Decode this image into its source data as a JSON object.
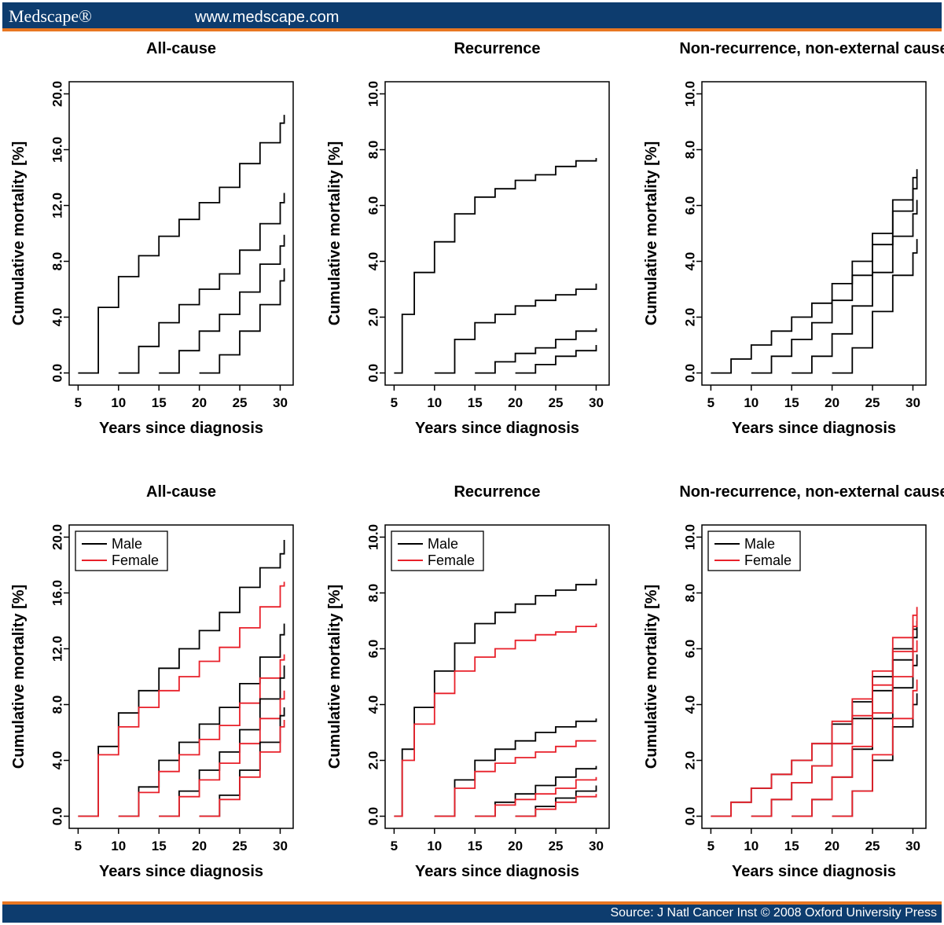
{
  "header": {
    "brand": "Medscape®",
    "url": "www.medscape.com"
  },
  "footer": {
    "source": "Source: J Natl Cancer Inst © 2008 Oxford University Press"
  },
  "colors": {
    "header_bg": "#0d3c6e",
    "accent": "#e87722",
    "male": "#000000",
    "female": "#e8202a"
  },
  "chart_data": [
    {
      "type": "line",
      "title": "All-cause",
      "xlabel": "Years since diagnosis",
      "ylabel": "Cumulative mortality [%]",
      "xlim": [
        5,
        30.5
      ],
      "ylim": [
        0,
        20
      ],
      "xticks": [
        "5",
        "10",
        "15",
        "20",
        "25",
        "30"
      ],
      "yticks": [
        "0.0",
        "4.0",
        "8.0",
        "12.0",
        "16.0",
        "20.0"
      ],
      "grid": false,
      "series": [
        {
          "x": [
            5,
            7.5,
            10,
            12.5,
            15,
            17.5,
            20,
            22.5,
            25,
            27.5,
            30,
            30.5
          ],
          "y": [
            0,
            4.7,
            6.9,
            8.4,
            9.8,
            11.0,
            12.2,
            13.3,
            15.0,
            16.5,
            17.9,
            18.5
          ]
        },
        {
          "x": [
            10,
            12.5,
            15,
            17.5,
            20,
            22.5,
            25,
            27.5,
            30,
            30.5
          ],
          "y": [
            0,
            1.9,
            3.6,
            4.9,
            6.0,
            7.1,
            8.8,
            10.7,
            12.2,
            12.9
          ]
        },
        {
          "x": [
            15,
            17.5,
            20,
            22.5,
            25,
            27.5,
            30,
            30.5
          ],
          "y": [
            0,
            1.6,
            3.0,
            4.2,
            5.8,
            7.8,
            9.1,
            9.9
          ]
        },
        {
          "x": [
            20,
            22.5,
            25,
            27.5,
            30,
            30.5
          ],
          "y": [
            0,
            1.3,
            3.0,
            4.9,
            6.6,
            7.5
          ]
        }
      ]
    },
    {
      "type": "line",
      "title": "Recurrence",
      "xlabel": "Years since diagnosis",
      "ylabel": "Cumulative mortality [%]",
      "xlim": [
        5,
        30.5
      ],
      "ylim": [
        0,
        10
      ],
      "xticks": [
        "5",
        "10",
        "15",
        "20",
        "25",
        "30"
      ],
      "yticks": [
        "0.0",
        "2.0",
        "4.0",
        "6.0",
        "8.0",
        "10.0"
      ],
      "grid": false,
      "series": [
        {
          "x": [
            5,
            6,
            7.5,
            10,
            12.5,
            15,
            17.5,
            20,
            22.5,
            25,
            27.5,
            30
          ],
          "y": [
            0,
            2.1,
            3.6,
            4.7,
            5.7,
            6.3,
            6.6,
            6.9,
            7.1,
            7.4,
            7.6,
            7.7
          ]
        },
        {
          "x": [
            10,
            12.5,
            15,
            17.5,
            20,
            22.5,
            25,
            27.5,
            30
          ],
          "y": [
            0,
            1.2,
            1.8,
            2.1,
            2.4,
            2.6,
            2.8,
            3.0,
            3.2
          ]
        },
        {
          "x": [
            15,
            17.5,
            20,
            22.5,
            25,
            27.5,
            30
          ],
          "y": [
            0,
            0.4,
            0.7,
            0.9,
            1.2,
            1.5,
            1.6
          ]
        },
        {
          "x": [
            20,
            22.5,
            25,
            27.5,
            30
          ],
          "y": [
            0,
            0.3,
            0.6,
            0.8,
            1.0
          ]
        }
      ]
    },
    {
      "type": "line",
      "title": "Non-recurrence, non-external cause",
      "xlabel": "Years since diagnosis",
      "ylabel": "Cumulative mortality [%]",
      "xlim": [
        5,
        30.5
      ],
      "ylim": [
        0,
        10
      ],
      "xticks": [
        "5",
        "10",
        "15",
        "20",
        "25",
        "30"
      ],
      "yticks": [
        "0.0",
        "2.0",
        "4.0",
        "6.0",
        "8.0",
        "10.0"
      ],
      "grid": false,
      "series": [
        {
          "x": [
            5,
            7.5,
            10,
            12.5,
            15,
            17.5,
            20,
            22.5,
            25,
            27.5,
            30,
            30.5
          ],
          "y": [
            0,
            0.5,
            1.0,
            1.5,
            2.0,
            2.5,
            3.2,
            4.0,
            5.0,
            6.2,
            7.0,
            7.3
          ]
        },
        {
          "x": [
            10,
            12.5,
            15,
            17.5,
            20,
            22.5,
            25,
            27.5,
            30,
            30.5
          ],
          "y": [
            0,
            0.6,
            1.2,
            1.8,
            2.6,
            3.5,
            4.6,
            5.8,
            6.6,
            7.0
          ]
        },
        {
          "x": [
            15,
            17.5,
            20,
            22.5,
            25,
            27.5,
            30,
            30.5
          ],
          "y": [
            0,
            0.6,
            1.4,
            2.4,
            3.6,
            4.9,
            5.7,
            6.2
          ]
        },
        {
          "x": [
            20,
            22.5,
            25,
            27.5,
            30,
            30.5
          ],
          "y": [
            0,
            0.9,
            2.2,
            3.5,
            4.3,
            4.8
          ]
        }
      ]
    },
    {
      "type": "line",
      "title": "All-cause",
      "xlabel": "Years since diagnosis",
      "ylabel": "Cumulative mortality [%]",
      "xlim": [
        5,
        30.5
      ],
      "ylim": [
        0,
        20
      ],
      "xticks": [
        "5",
        "10",
        "15",
        "20",
        "25",
        "30"
      ],
      "yticks": [
        "0.0",
        "4.0",
        "8.0",
        "12.0",
        "16.0",
        "20.0"
      ],
      "grid": false,
      "legend": {
        "position": "top-left",
        "entries": [
          {
            "label": "Male",
            "color": "#000000"
          },
          {
            "label": "Female",
            "color": "#e8202a"
          }
        ]
      },
      "series": [
        {
          "name": "Male",
          "x": [
            5,
            7.5,
            10,
            12.5,
            15,
            17.5,
            20,
            22.5,
            25,
            27.5,
            30,
            30.5
          ],
          "y": [
            0,
            5.0,
            7.4,
            9.0,
            10.6,
            12.0,
            13.3,
            14.6,
            16.4,
            17.8,
            18.8,
            19.8
          ]
        },
        {
          "name": "Female",
          "x": [
            5,
            7.5,
            10,
            12.5,
            15,
            17.5,
            20,
            22.5,
            25,
            27.5,
            30,
            30.5
          ],
          "y": [
            0,
            4.4,
            6.4,
            7.8,
            9.0,
            10.0,
            11.1,
            12.1,
            13.5,
            15.0,
            16.5,
            16.8
          ]
        },
        {
          "name": "Male",
          "x": [
            10,
            12.5,
            15,
            17.5,
            20,
            22.5,
            25,
            27.5,
            30,
            30.5
          ],
          "y": [
            0,
            2.1,
            4.0,
            5.3,
            6.6,
            7.8,
            9.5,
            11.4,
            13.0,
            13.8
          ]
        },
        {
          "name": "Female",
          "x": [
            10,
            12.5,
            15,
            17.5,
            20,
            22.5,
            25,
            27.5,
            30,
            30.5
          ],
          "y": [
            0,
            1.7,
            3.2,
            4.4,
            5.5,
            6.5,
            8.1,
            9.9,
            11.2,
            11.6
          ]
        },
        {
          "name": "Male",
          "x": [
            15,
            17.5,
            20,
            22.5,
            25,
            27.5,
            30,
            30.5
          ],
          "y": [
            0,
            1.8,
            3.3,
            4.6,
            6.2,
            8.4,
            9.9,
            10.8
          ]
        },
        {
          "name": "Female",
          "x": [
            15,
            17.5,
            20,
            22.5,
            25,
            27.5,
            30,
            30.5
          ],
          "y": [
            0,
            1.4,
            2.6,
            3.8,
            5.2,
            7.0,
            8.4,
            9.0
          ]
        },
        {
          "name": "Male",
          "x": [
            20,
            22.5,
            25,
            27.5,
            30,
            30.5
          ],
          "y": [
            0,
            1.5,
            3.3,
            5.3,
            7.2,
            7.8
          ]
        },
        {
          "name": "Female",
          "x": [
            20,
            22.5,
            25,
            27.5,
            30,
            30.5
          ],
          "y": [
            0,
            1.2,
            2.8,
            4.6,
            6.4,
            6.9
          ]
        }
      ]
    },
    {
      "type": "line",
      "title": "Recurrence",
      "xlabel": "Years since diagnosis",
      "ylabel": "Cumulative mortality [%]",
      "xlim": [
        5,
        30.5
      ],
      "ylim": [
        0,
        10
      ],
      "xticks": [
        "5",
        "10",
        "15",
        "20",
        "25",
        "30"
      ],
      "yticks": [
        "0.0",
        "2.0",
        "4.0",
        "6.0",
        "8.0",
        "10.0"
      ],
      "grid": false,
      "legend": {
        "position": "top-left",
        "entries": [
          {
            "label": "Male",
            "color": "#000000"
          },
          {
            "label": "Female",
            "color": "#e8202a"
          }
        ]
      },
      "series": [
        {
          "name": "Male",
          "x": [
            5,
            6,
            7.5,
            10,
            12.5,
            15,
            17.5,
            20,
            22.5,
            25,
            27.5,
            30
          ],
          "y": [
            0,
            2.4,
            3.9,
            5.2,
            6.2,
            6.9,
            7.3,
            7.6,
            7.9,
            8.1,
            8.3,
            8.5
          ]
        },
        {
          "name": "Female",
          "x": [
            5,
            6,
            7.5,
            10,
            12.5,
            15,
            17.5,
            20,
            22.5,
            25,
            27.5,
            30
          ],
          "y": [
            0,
            2.0,
            3.3,
            4.4,
            5.2,
            5.7,
            6.0,
            6.3,
            6.5,
            6.6,
            6.8,
            6.9
          ]
        },
        {
          "name": "Male",
          "x": [
            10,
            12.5,
            15,
            17.5,
            20,
            22.5,
            25,
            27.5,
            30
          ],
          "y": [
            0,
            1.3,
            2.0,
            2.4,
            2.7,
            3.0,
            3.2,
            3.4,
            3.5
          ]
        },
        {
          "name": "Female",
          "x": [
            10,
            12.5,
            15,
            17.5,
            20,
            22.5,
            25,
            27.5,
            30
          ],
          "y": [
            0,
            1.0,
            1.6,
            1.9,
            2.1,
            2.3,
            2.5,
            2.7,
            2.7
          ]
        },
        {
          "name": "Male",
          "x": [
            15,
            17.5,
            20,
            22.5,
            25,
            27.5,
            30
          ],
          "y": [
            0,
            0.5,
            0.8,
            1.1,
            1.4,
            1.7,
            1.8
          ]
        },
        {
          "name": "Female",
          "x": [
            15,
            17.5,
            20,
            22.5,
            25,
            27.5,
            30
          ],
          "y": [
            0,
            0.4,
            0.6,
            0.8,
            1.0,
            1.3,
            1.4
          ]
        },
        {
          "name": "Male",
          "x": [
            20,
            22.5,
            25,
            27.5,
            30
          ],
          "y": [
            0,
            0.35,
            0.65,
            0.9,
            1.1
          ]
        },
        {
          "name": "Female",
          "x": [
            20,
            22.5,
            25,
            27.5,
            30
          ],
          "y": [
            0,
            0.25,
            0.5,
            0.7,
            0.8
          ]
        }
      ]
    },
    {
      "type": "line",
      "title": "Non-recurrence, non-external cause",
      "xlabel": "Years since diagnosis",
      "ylabel": "Cumulative mortality [%]",
      "xlim": [
        5,
        30.5
      ],
      "ylim": [
        0,
        10
      ],
      "xticks": [
        "5",
        "10",
        "15",
        "20",
        "25",
        "30"
      ],
      "yticks": [
        "0.0",
        "2.0",
        "4.0",
        "6.0",
        "8.0",
        "10.0"
      ],
      "grid": false,
      "legend": {
        "position": "top-left",
        "entries": [
          {
            "label": "Male",
            "color": "#000000"
          },
          {
            "label": "Female",
            "color": "#e8202a"
          }
        ]
      },
      "series": [
        {
          "name": "Male",
          "x": [
            5,
            7.5,
            10,
            12.5,
            15,
            17.5,
            20,
            22.5,
            25,
            27.5,
            30,
            30.5
          ],
          "y": [
            0,
            0.5,
            1.0,
            1.5,
            2.0,
            2.6,
            3.3,
            4.1,
            5.0,
            6.0,
            6.7,
            7.0
          ]
        },
        {
          "name": "Female",
          "x": [
            5,
            7.5,
            10,
            12.5,
            15,
            17.5,
            20,
            22.5,
            25,
            27.5,
            30,
            30.5
          ],
          "y": [
            0,
            0.5,
            1.0,
            1.5,
            2.0,
            2.6,
            3.4,
            4.2,
            5.2,
            6.4,
            7.2,
            7.5
          ]
        },
        {
          "name": "Male",
          "x": [
            10,
            12.5,
            15,
            17.5,
            20,
            22.5,
            25,
            27.5,
            30,
            30.5
          ],
          "y": [
            0,
            0.6,
            1.2,
            1.8,
            2.6,
            3.5,
            4.5,
            5.6,
            6.4,
            6.8
          ]
        },
        {
          "name": "Female",
          "x": [
            10,
            12.5,
            15,
            17.5,
            20,
            22.5,
            25,
            27.5,
            30,
            30.5
          ],
          "y": [
            0,
            0.6,
            1.2,
            1.8,
            2.6,
            3.6,
            4.7,
            5.9,
            6.8,
            7.2
          ]
        },
        {
          "name": "Male",
          "x": [
            15,
            17.5,
            20,
            22.5,
            25,
            27.5,
            30,
            30.5
          ],
          "y": [
            0,
            0.6,
            1.4,
            2.4,
            3.5,
            4.6,
            5.4,
            5.8
          ]
        },
        {
          "name": "Female",
          "x": [
            15,
            17.5,
            20,
            22.5,
            25,
            27.5,
            30,
            30.5
          ],
          "y": [
            0,
            0.6,
            1.4,
            2.5,
            3.7,
            5.0,
            5.9,
            6.3
          ]
        },
        {
          "name": "Male",
          "x": [
            20,
            22.5,
            25,
            27.5,
            30,
            30.5
          ],
          "y": [
            0,
            0.9,
            2.0,
            3.2,
            4.0,
            4.4
          ]
        },
        {
          "name": "Female",
          "x": [
            20,
            22.5,
            25,
            27.5,
            30,
            30.5
          ],
          "y": [
            0,
            0.9,
            2.2,
            3.5,
            4.5,
            4.9
          ]
        }
      ]
    }
  ]
}
